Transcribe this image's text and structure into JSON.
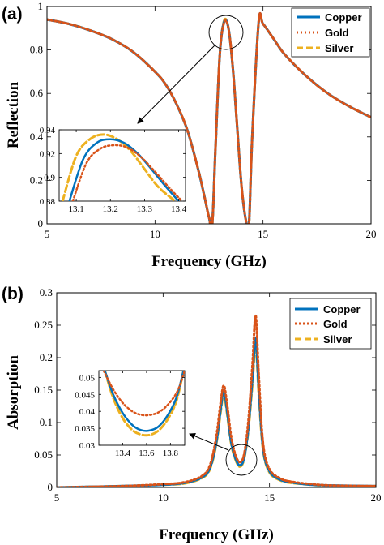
{
  "colors": {
    "copper": "#0072BD",
    "gold": "#D95319",
    "silver": "#EDB120"
  },
  "chart_data": [
    {
      "type": "line",
      "panel_label": "(a)",
      "xlabel": "Frequency (GHz)",
      "ylabel": "Reflection",
      "xlim": [
        5,
        20
      ],
      "ylim": [
        0,
        1
      ],
      "xticks": [
        "5",
        "10",
        "15",
        "20"
      ],
      "yticks": [
        "0",
        "0.2",
        "0.4",
        "0.6",
        "0.8",
        "1"
      ],
      "grid": false,
      "legend": "top-right",
      "series": [
        {
          "name": "Copper",
          "x": [
            5,
            6,
            7,
            8,
            9,
            10,
            10.5,
            11,
            11.5,
            12,
            12.3,
            12.5,
            12.65,
            12.8,
            13.0,
            13.2,
            13.4,
            13.6,
            13.8,
            14.0,
            14.2,
            14.35,
            14.5,
            14.8,
            15.0,
            15.5,
            16,
            17,
            18,
            19,
            20
          ],
          "y": [
            0.94,
            0.92,
            0.89,
            0.85,
            0.79,
            0.7,
            0.64,
            0.55,
            0.43,
            0.25,
            0.12,
            0.03,
            0.0,
            0.35,
            0.78,
            0.93,
            0.9,
            0.72,
            0.45,
            0.18,
            0.02,
            0.0,
            0.4,
            0.93,
            0.92,
            0.85,
            0.78,
            0.68,
            0.6,
            0.54,
            0.49
          ]
        },
        {
          "name": "Gold",
          "x": [
            5,
            6,
            7,
            8,
            9,
            10,
            10.5,
            11,
            11.5,
            12,
            12.3,
            12.5,
            12.65,
            12.8,
            13.0,
            13.2,
            13.4,
            13.6,
            13.8,
            14.0,
            14.2,
            14.35,
            14.5,
            14.8,
            15.0,
            15.5,
            16,
            17,
            18,
            19,
            20
          ],
          "y": [
            0.94,
            0.92,
            0.89,
            0.85,
            0.79,
            0.7,
            0.64,
            0.55,
            0.43,
            0.25,
            0.12,
            0.03,
            0.0,
            0.35,
            0.78,
            0.926,
            0.9,
            0.72,
            0.45,
            0.18,
            0.02,
            0.0,
            0.4,
            0.93,
            0.92,
            0.85,
            0.78,
            0.68,
            0.6,
            0.54,
            0.49
          ]
        },
        {
          "name": "Silver",
          "x": [
            5,
            6,
            7,
            8,
            9,
            10,
            10.5,
            11,
            11.5,
            12,
            12.3,
            12.5,
            12.65,
            12.8,
            13.0,
            13.2,
            13.4,
            13.6,
            13.8,
            14.0,
            14.2,
            14.35,
            14.5,
            14.8,
            15.0,
            15.5,
            16,
            17,
            18,
            19,
            20
          ],
          "y": [
            0.94,
            0.92,
            0.89,
            0.85,
            0.79,
            0.7,
            0.64,
            0.55,
            0.43,
            0.25,
            0.12,
            0.03,
            0.0,
            0.35,
            0.78,
            0.935,
            0.9,
            0.72,
            0.45,
            0.18,
            0.02,
            0.0,
            0.4,
            0.93,
            0.92,
            0.85,
            0.78,
            0.68,
            0.6,
            0.54,
            0.49
          ]
        }
      ],
      "inset": {
        "xlim": [
          13.05,
          13.42
        ],
        "ylim": [
          0.88,
          0.94
        ],
        "xticks": [
          "13.1",
          "13.2",
          "13.3",
          "13.4"
        ],
        "yticks": [
          "0.88",
          "0.9",
          "0.92",
          "0.94"
        ],
        "series": [
          {
            "name": "Copper",
            "x": [
              13.08,
              13.12,
              13.16,
              13.2,
              13.24,
              13.28,
              13.32,
              13.36,
              13.4
            ],
            "y": [
              0.88,
              0.915,
              0.929,
              0.932,
              0.929,
              0.92,
              0.907,
              0.893,
              0.88
            ]
          },
          {
            "name": "Gold",
            "x": [
              13.09,
              13.13,
              13.17,
              13.21,
              13.25,
              13.29,
              13.33,
              13.37,
              13.41
            ],
            "y": [
              0.88,
              0.912,
              0.924,
              0.927,
              0.925,
              0.917,
              0.905,
              0.892,
              0.88
            ]
          },
          {
            "name": "Silver",
            "x": [
              13.06,
              13.1,
              13.14,
              13.18,
              13.22,
              13.26,
              13.3,
              13.34,
              13.39
            ],
            "y": [
              0.88,
              0.918,
              0.932,
              0.936,
              0.932,
              0.922,
              0.907,
              0.892,
              0.88
            ]
          }
        ]
      }
    },
    {
      "type": "line",
      "panel_label": "(b)",
      "xlabel": "Frequency (GHz)",
      "ylabel": "Absorption",
      "xlim": [
        5,
        20
      ],
      "ylim": [
        0,
        0.3
      ],
      "xticks": [
        "5",
        "10",
        "15",
        "20"
      ],
      "yticks": [
        "0",
        "0.05",
        "0.1",
        "0.15",
        "0.2",
        "0.25",
        "0.3"
      ],
      "grid": false,
      "legend": "top-right",
      "series": [
        {
          "name": "Copper",
          "x": [
            5,
            8,
            10,
            11,
            11.8,
            12.2,
            12.5,
            12.7,
            12.85,
            13.0,
            13.2,
            13.4,
            13.6,
            13.8,
            14.0,
            14.2,
            14.35,
            14.5,
            14.7,
            15.0,
            15.5,
            16,
            17,
            18,
            20
          ],
          "y": [
            0.0,
            0.002,
            0.004,
            0.007,
            0.015,
            0.03,
            0.07,
            0.12,
            0.15,
            0.12,
            0.07,
            0.045,
            0.034,
            0.045,
            0.09,
            0.17,
            0.23,
            0.15,
            0.06,
            0.025,
            0.012,
            0.008,
            0.004,
            0.003,
            0.002
          ]
        },
        {
          "name": "Gold",
          "x": [
            5,
            8,
            10,
            11,
            11.8,
            12.2,
            12.5,
            12.7,
            12.85,
            13.0,
            13.2,
            13.4,
            13.6,
            13.8,
            14.0,
            14.2,
            14.35,
            14.5,
            14.7,
            15.0,
            15.5,
            16,
            17,
            18,
            20
          ],
          "y": [
            0.0,
            0.002,
            0.005,
            0.008,
            0.017,
            0.034,
            0.078,
            0.13,
            0.157,
            0.13,
            0.078,
            0.05,
            0.039,
            0.05,
            0.1,
            0.19,
            0.265,
            0.17,
            0.067,
            0.028,
            0.014,
            0.009,
            0.005,
            0.003,
            0.002
          ]
        },
        {
          "name": "Silver",
          "x": [
            5,
            8,
            10,
            11,
            11.8,
            12.2,
            12.5,
            12.7,
            12.85,
            13.0,
            13.2,
            13.4,
            13.6,
            13.8,
            14.0,
            14.2,
            14.35,
            14.5,
            14.7,
            15.0,
            15.5,
            16,
            17,
            18,
            20
          ],
          "y": [
            0.0,
            0.002,
            0.004,
            0.006,
            0.014,
            0.028,
            0.067,
            0.115,
            0.145,
            0.115,
            0.067,
            0.043,
            0.032,
            0.043,
            0.086,
            0.16,
            0.22,
            0.14,
            0.057,
            0.023,
            0.011,
            0.007,
            0.004,
            0.002,
            0.002
          ]
        }
      ],
      "inset": {
        "xlim": [
          13.2,
          13.92
        ],
        "ylim": [
          0.03,
          0.052
        ],
        "xticks": [
          "13.4",
          "13.6",
          "13.8"
        ],
        "yticks": [
          "0.03",
          "0.035",
          "0.04",
          "0.045",
          "0.05"
        ],
        "series": [
          {
            "name": "Copper",
            "x": [
              13.25,
              13.32,
              13.4,
              13.48,
              13.55,
              13.62,
              13.7,
              13.78,
              13.85,
              13.91
            ],
            "y": [
              0.052,
              0.045,
              0.0395,
              0.036,
              0.0345,
              0.0343,
              0.0355,
              0.039,
              0.044,
              0.052
            ]
          },
          {
            "name": "Gold",
            "x": [
              13.24,
              13.32,
              13.4,
              13.48,
              13.55,
              13.62,
              13.7,
              13.78,
              13.86,
              13.92
            ],
            "y": [
              0.052,
              0.0465,
              0.0425,
              0.04,
              0.039,
              0.0389,
              0.0397,
              0.042,
              0.046,
              0.052
            ]
          },
          {
            "name": "Silver",
            "x": [
              13.25,
              13.32,
              13.4,
              13.48,
              13.55,
              13.62,
              13.7,
              13.78,
              13.85,
              13.91
            ],
            "y": [
              0.052,
              0.044,
              0.038,
              0.0345,
              0.0332,
              0.033,
              0.0343,
              0.0378,
              0.043,
              0.052
            ]
          }
        ]
      }
    }
  ]
}
